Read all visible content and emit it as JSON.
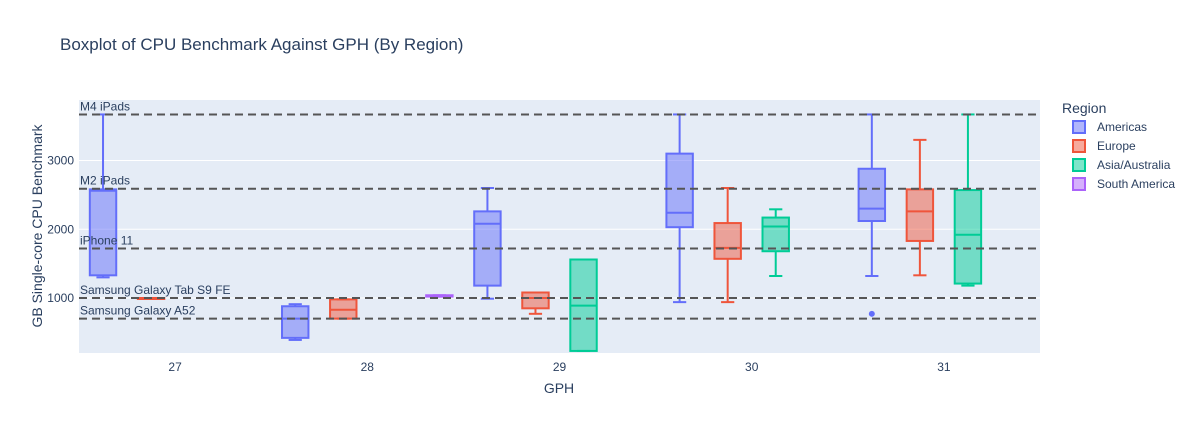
{
  "chart_data": {
    "type": "box",
    "title": "Boxplot of CPU Benchmark Against GPH (By Region)",
    "xlabel": "GPH",
    "ylabel": "GB Single-core CPU Benchmark",
    "categories": [
      "27",
      "28",
      "29",
      "30",
      "31"
    ],
    "y_ticks": [
      1000,
      2000,
      3000
    ],
    "ylim": [
      200,
      3880
    ],
    "grid": true,
    "legend": {
      "title": "Region",
      "position": "right"
    },
    "series": [
      {
        "name": "Americas",
        "color": "#636efa",
        "boxes": [
          {
            "x": "27",
            "min": 1300,
            "q1": 1330,
            "median": 2560,
            "q3": 2580,
            "max": 3670
          },
          {
            "x": "28",
            "min": 390,
            "q1": 420,
            "median": 700,
            "q3": 880,
            "max": 910
          },
          {
            "x": "29",
            "min": 990,
            "q1": 1180,
            "median": 2080,
            "q3": 2260,
            "max": 2600
          },
          {
            "x": "30",
            "min": 940,
            "q1": 2030,
            "median": 2240,
            "q3": 3100,
            "max": 3670
          },
          {
            "x": "31",
            "min": 1320,
            "q1": 2120,
            "median": 2300,
            "q3": 2880,
            "max": 3670,
            "outliers": [
              770
            ]
          }
        ]
      },
      {
        "name": "Europe",
        "color": "#ef553b",
        "boxes": [
          {
            "x": "27",
            "min": 1000,
            "q1": 1000,
            "median": 1000,
            "q3": 1000,
            "max": 1000
          },
          {
            "x": "28",
            "min": 700,
            "q1": 700,
            "median": 830,
            "q3": 980,
            "max": 980
          },
          {
            "x": "29",
            "min": 770,
            "q1": 850,
            "median": 1000,
            "q3": 1080,
            "max": 1080
          },
          {
            "x": "30",
            "min": 940,
            "q1": 1570,
            "median": 1730,
            "q3": 2090,
            "max": 2600
          },
          {
            "x": "31",
            "min": 1330,
            "q1": 1830,
            "median": 2260,
            "q3": 2580,
            "max": 3300
          }
        ]
      },
      {
        "name": "Asia/Australia",
        "color": "#00cc96",
        "boxes": [
          {
            "x": "29",
            "min": 230,
            "q1": 230,
            "median": 890,
            "q3": 1560,
            "max": 1560
          },
          {
            "x": "30",
            "min": 1320,
            "q1": 1680,
            "median": 2040,
            "q3": 2170,
            "max": 2290
          },
          {
            "x": "31",
            "min": 1180,
            "q1": 1210,
            "median": 1920,
            "q3": 2570,
            "max": 3670
          }
        ]
      },
      {
        "name": "South America",
        "color": "#ab63fa",
        "boxes": [
          {
            "x": "28",
            "min": 1020,
            "q1": 1020,
            "median": 1030,
            "q3": 1040,
            "max": 1040
          }
        ]
      }
    ],
    "reference_lines": [
      {
        "label": "M4 iPads",
        "value": 3670
      },
      {
        "label": "M2 iPads",
        "value": 2590
      },
      {
        "label": "iPhone 11",
        "value": 1720
      },
      {
        "label": "Samsung Galaxy Tab S9 FE",
        "value": 1000
      },
      {
        "label": "Samsung Galaxy A52",
        "value": 700
      }
    ]
  }
}
